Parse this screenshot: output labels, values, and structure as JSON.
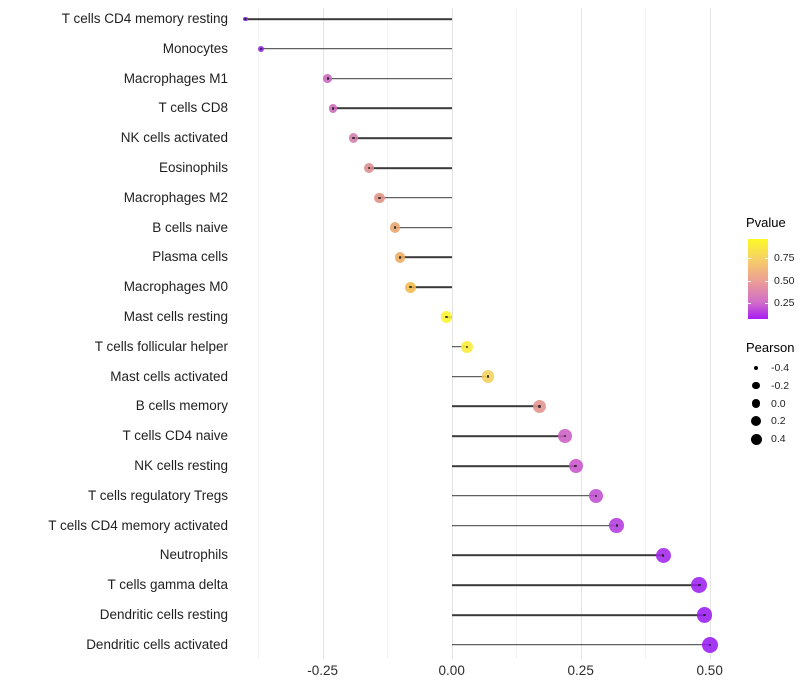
{
  "chart_data": {
    "type": "scatter",
    "variant": "lollipop",
    "title": "",
    "xlabel": "",
    "ylabel": "",
    "grid": "vertical-gridlines-only",
    "legend_position": "right",
    "xlim": [
      -0.445,
      0.545
    ],
    "x_ticks": [
      {
        "value": -0.25,
        "label": "-0.25"
      },
      {
        "value": 0.0,
        "label": "0.00"
      },
      {
        "value": 0.25,
        "label": "0.25"
      },
      {
        "value": 0.5,
        "label": "0.50"
      }
    ],
    "x_minor_gridlines": [
      -0.375,
      -0.125,
      0.125,
      0.375
    ],
    "baseline_x": 0,
    "line_color": "#3a3a3a",
    "points": [
      {
        "label": "T cells CD4 memory resting",
        "pearson": -0.4,
        "dot_color": "#7e2ad6"
      },
      {
        "label": "Monocytes",
        "pearson": -0.37,
        "dot_color": "#8e21e2"
      },
      {
        "label": "Macrophages M1",
        "pearson": -0.24,
        "dot_color": "#c865bd"
      },
      {
        "label": "T cells CD8",
        "pearson": -0.23,
        "dot_color": "#ca69ba"
      },
      {
        "label": "NK cells activated",
        "pearson": -0.19,
        "dot_color": "#d07cab"
      },
      {
        "label": "Eosinophils",
        "pearson": -0.16,
        "dot_color": "#dc8b90"
      },
      {
        "label": "Macrophages M2",
        "pearson": -0.14,
        "dot_color": "#df9184"
      },
      {
        "label": "B cells naive",
        "pearson": -0.11,
        "dot_color": "#e8a46b"
      },
      {
        "label": "Plasma cells",
        "pearson": -0.1,
        "dot_color": "#ecab5f"
      },
      {
        "label": "Macrophages M0",
        "pearson": -0.08,
        "dot_color": "#f0b94c"
      },
      {
        "label": "Mast cells resting",
        "pearson": -0.01,
        "dot_color": "#fdf32a"
      },
      {
        "label": "T cells follicular helper",
        "pearson": 0.03,
        "dot_color": "#f9ea38"
      },
      {
        "label": "Mast cells activated",
        "pearson": 0.07,
        "dot_color": "#f2cf5b"
      },
      {
        "label": "B cells memory",
        "pearson": 0.17,
        "dot_color": "#e2928d"
      },
      {
        "label": "T cells CD4 naive",
        "pearson": 0.22,
        "dot_color": "#cc5fc3"
      },
      {
        "label": "NK cells resting",
        "pearson": 0.24,
        "dot_color": "#c853cb"
      },
      {
        "label": "T cells regulatory  Tregs",
        "pearson": 0.28,
        "dot_color": "#c24fd0"
      },
      {
        "label": "T cells CD4 memory activated",
        "pearson": 0.32,
        "dot_color": "#b23ade"
      },
      {
        "label": "Neutrophils",
        "pearson": 0.41,
        "dot_color": "#a425ec"
      },
      {
        "label": "T cells gamma delta",
        "pearson": 0.48,
        "dot_color": "#9c1ff0"
      },
      {
        "label": "Dendritic cells resting",
        "pearson": 0.49,
        "dot_color": "#9a1df1"
      },
      {
        "label": "Dendritic cells activated",
        "pearson": 0.5,
        "dot_color": "#991cf2"
      }
    ],
    "legend": {
      "pvalue": {
        "title": "Pvalue",
        "gradient_bottom_to_top": [
          {
            "color": "#a81cf2",
            "pos": 0
          },
          {
            "color": "#cf6cca",
            "pos": 0.2
          },
          {
            "color": "#ec9e96",
            "pos": 0.475
          },
          {
            "color": "#f6d263",
            "pos": 0.76
          },
          {
            "color": "#fcf926",
            "pos": 1
          }
        ],
        "ticks": [
          {
            "label": "0.75",
            "frac_from_top": 0.2375
          },
          {
            "label": "0.50",
            "frac_from_top": 0.525
          },
          {
            "label": "0.25",
            "frac_from_top": 0.8
          }
        ]
      },
      "pearson": {
        "title": "Pearson",
        "dot_color": "#000000",
        "entries": [
          {
            "label": "-0.4",
            "value": -0.4
          },
          {
            "label": "-0.2",
            "value": -0.2
          },
          {
            "label": "0.0",
            "value": 0.0
          },
          {
            "label": "0.2",
            "value": 0.2
          },
          {
            "label": "0.4",
            "value": 0.4
          }
        ]
      }
    }
  }
}
